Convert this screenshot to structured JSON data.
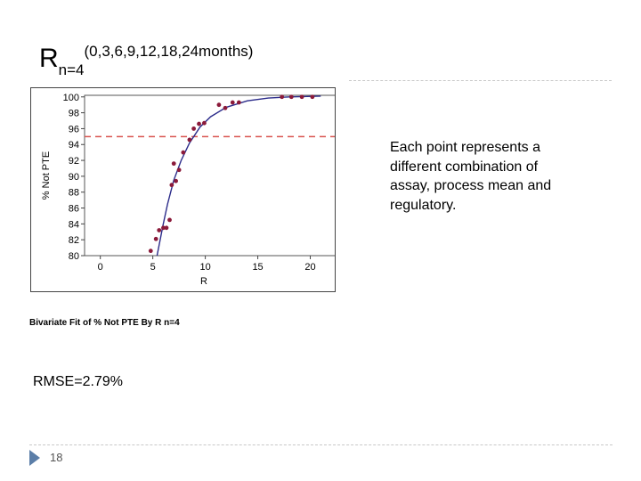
{
  "slide": {
    "title": {
      "main": "R",
      "subscript": "n=4",
      "superscript": "(0,3,6,9,12,18,24months)"
    },
    "note": "Each point represents a different combination of assay, process mean and regulatory.",
    "caption": "Bivariate Fit of % Not PTE By R n=4",
    "rmse": "RMSE=2.79%",
    "page_number": "18",
    "marker_color": "#5b7ea8"
  },
  "chart_data": {
    "type": "scatter",
    "xlabel": "R",
    "ylabel": "% Not PTE",
    "xlim": [
      -1.5,
      22.5
    ],
    "ylim": [
      80,
      100.2
    ],
    "x_ticks": [
      0,
      5,
      10,
      15,
      20
    ],
    "y_ticks": [
      80,
      82,
      84,
      86,
      88,
      90,
      92,
      94,
      96,
      98,
      100
    ],
    "grid": false,
    "reference_line": {
      "y": 95,
      "style": "dashed",
      "color": "#d9534f"
    },
    "point_color": "#8b1a3a",
    "fit_color": "#2b2b8a",
    "points": [
      {
        "x": 4.8,
        "y": 80.6
      },
      {
        "x": 5.3,
        "y": 82.1
      },
      {
        "x": 5.6,
        "y": 83.2
      },
      {
        "x": 6.0,
        "y": 83.5
      },
      {
        "x": 6.3,
        "y": 83.5
      },
      {
        "x": 6.6,
        "y": 84.5
      },
      {
        "x": 6.8,
        "y": 88.9
      },
      {
        "x": 7.0,
        "y": 91.6
      },
      {
        "x": 7.2,
        "y": 89.4
      },
      {
        "x": 7.5,
        "y": 90.8
      },
      {
        "x": 7.9,
        "y": 93.0
      },
      {
        "x": 8.5,
        "y": 94.6
      },
      {
        "x": 8.9,
        "y": 96.0
      },
      {
        "x": 9.4,
        "y": 96.6
      },
      {
        "x": 9.9,
        "y": 96.7
      },
      {
        "x": 11.3,
        "y": 99.0
      },
      {
        "x": 11.9,
        "y": 98.6
      },
      {
        "x": 12.6,
        "y": 99.3
      },
      {
        "x": 13.2,
        "y": 99.3
      },
      {
        "x": 17.3,
        "y": 100.0
      },
      {
        "x": 18.2,
        "y": 100.0
      },
      {
        "x": 19.2,
        "y": 100.0
      },
      {
        "x": 20.2,
        "y": 100.0
      }
    ],
    "fit_line": [
      {
        "x": 5.4,
        "y": 80.0
      },
      {
        "x": 5.7,
        "y": 82.0
      },
      {
        "x": 6.0,
        "y": 84.0
      },
      {
        "x": 6.4,
        "y": 86.5
      },
      {
        "x": 7.0,
        "y": 89.5
      },
      {
        "x": 7.7,
        "y": 92.0
      },
      {
        "x": 8.5,
        "y": 94.2
      },
      {
        "x": 9.5,
        "y": 96.2
      },
      {
        "x": 10.5,
        "y": 97.5
      },
      {
        "x": 12.0,
        "y": 98.7
      },
      {
        "x": 14.0,
        "y": 99.5
      },
      {
        "x": 16.0,
        "y": 99.85
      },
      {
        "x": 18.0,
        "y": 100.0
      },
      {
        "x": 21.0,
        "y": 100.1
      }
    ]
  }
}
